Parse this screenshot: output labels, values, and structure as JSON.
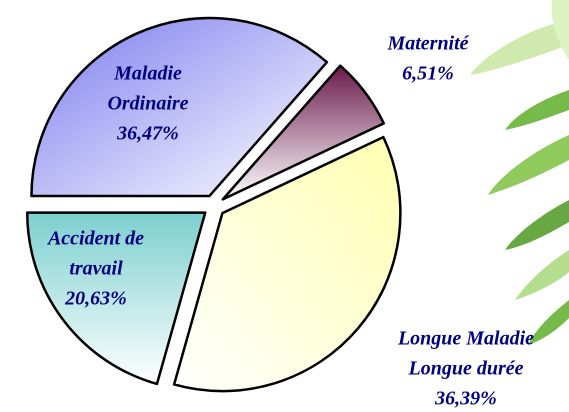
{
  "chart_data": {
    "type": "pie",
    "categories": [
      [
        "Maladie",
        "Ordinaire"
      ],
      [
        "Maternité"
      ],
      [
        "Longue Maladie",
        "Longue durée"
      ],
      [
        "Accident de",
        "travail"
      ]
    ],
    "values": [
      36.47,
      6.51,
      36.39,
      20.63
    ],
    "value_labels": [
      "36,47%",
      "6,51%",
      "36,39%",
      "20,63%"
    ],
    "colors": [
      "#7b7bef",
      "#6a1a4c",
      "#ffffb0",
      "#7ccfcf"
    ]
  }
}
